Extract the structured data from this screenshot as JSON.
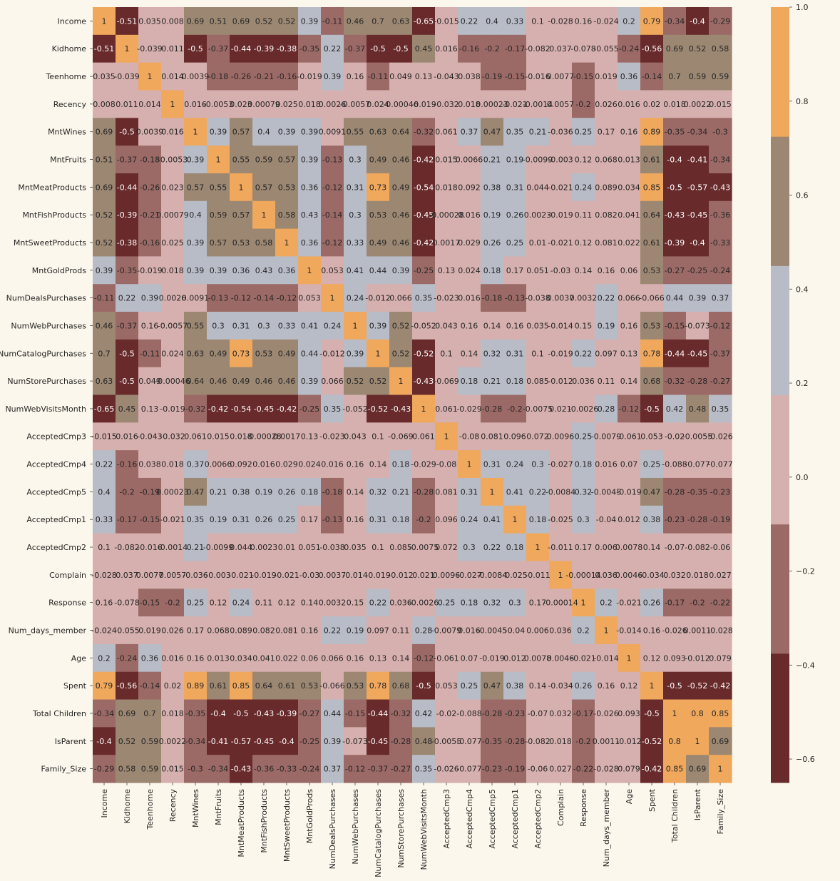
{
  "chart_data": {
    "type": "heatmap",
    "title": "",
    "xlabel": "",
    "ylabel": "",
    "labels": [
      "Income",
      "Kidhome",
      "Teenhome",
      "Recency",
      "MntWines",
      "MntFruits",
      "MntMeatProducts",
      "MntFishProducts",
      "MntSweetProducts",
      "MntGoldProds",
      "NumDealsPurchases",
      "NumWebPurchases",
      "NumCatalogPurchases",
      "NumStorePurchases",
      "NumWebVisitsMonth",
      "AcceptedCmp3",
      "AcceptedCmp4",
      "AcceptedCmp5",
      "AcceptedCmp1",
      "AcceptedCmp2",
      "Complain",
      "Response",
      "Num_days_member",
      "Age",
      "Spent",
      "Total Children",
      "IsParent",
      "Family_Size"
    ],
    "cell_text": [
      [
        "1",
        "-0.51",
        "0.035",
        "0.008",
        "0.69",
        "0.51",
        "0.69",
        "0.52",
        "0.52",
        "0.39",
        "-0.11",
        "0.46",
        "0.7",
        "0.63",
        "-0.65",
        "-0.015",
        "0.22",
        "0.4",
        "0.33",
        "0.1",
        "-0.028",
        "0.16",
        "-0.024",
        "0.2",
        "0.79",
        "-0.34",
        "-0.4",
        "-0.29"
      ],
      [
        "-0.51",
        "1",
        "-0.039",
        "0.011",
        "-0.5",
        "-0.37",
        "-0.44",
        "-0.39",
        "-0.38",
        "-0.35",
        "0.22",
        "-0.37",
        "-0.5",
        "-0.5",
        "0.45",
        "0.016",
        "-0.16",
        "-0.2",
        "-0.17",
        "-0.082",
        "0.037",
        "-0.078",
        "-0.055",
        "-0.24",
        "-0.56",
        "0.69",
        "0.52",
        "0.58"
      ],
      [
        "0.035",
        "-0.039",
        "1",
        "0.014",
        "0.0039",
        "-0.18",
        "-0.26",
        "-0.21",
        "-0.16",
        "-0.019",
        "0.39",
        "0.16",
        "-0.11",
        "0.049",
        "0.13",
        "-0.043",
        "0.038",
        "-0.19",
        "-0.15",
        "-0.016",
        "0.0077",
        "-0.15",
        "0.019",
        "0.36",
        "-0.14",
        "0.7",
        "0.59",
        "0.59"
      ],
      [
        "0.008",
        "0.011",
        "0.014",
        "1",
        "0.016",
        "-0.0053",
        "0.023",
        "0.00079",
        "0.025",
        "0.018",
        "0.0026",
        "-0.0057",
        "0.024",
        "-0.00046",
        "-0.019",
        "-0.032",
        "0.018",
        "0.00023",
        "-0.021",
        "-0.0014",
        "0.0057",
        "-0.2",
        "0.026",
        "0.016",
        "0.02",
        "0.018",
        "0.0022",
        "0.015"
      ],
      [
        "0.69",
        "-0.5",
        "0.0039",
        "0.016",
        "1",
        "0.39",
        "0.57",
        "0.4",
        "0.39",
        "0.39",
        "0.0091",
        "0.55",
        "0.63",
        "0.64",
        "-0.32",
        "0.061",
        "0.37",
        "0.47",
        "0.35",
        "0.21",
        "-0.036",
        "0.25",
        "0.17",
        "0.16",
        "0.89",
        "-0.35",
        "-0.34",
        "-0.3"
      ],
      [
        "0.51",
        "-0.37",
        "-0.18",
        "-0.0053",
        "0.39",
        "1",
        "0.55",
        "0.59",
        "0.57",
        "0.39",
        "-0.13",
        "0.3",
        "0.49",
        "0.46",
        "-0.42",
        "0.015",
        "0.0066",
        "0.21",
        "0.19",
        "-0.0099",
        "-0.003",
        "0.12",
        "0.068",
        "0.013",
        "0.61",
        "-0.4",
        "-0.41",
        "-0.34"
      ],
      [
        "0.69",
        "-0.44",
        "-0.26",
        "0.023",
        "0.57",
        "0.55",
        "1",
        "0.57",
        "0.53",
        "0.36",
        "-0.12",
        "0.31",
        "0.73",
        "0.49",
        "-0.54",
        "0.018",
        "0.092",
        "0.38",
        "0.31",
        "0.044",
        "-0.021",
        "0.24",
        "0.089",
        "0.034",
        "0.85",
        "-0.5",
        "-0.57",
        "-0.43"
      ],
      [
        "0.52",
        "-0.39",
        "-0.21",
        "0.00079",
        "0.4",
        "0.59",
        "0.57",
        "1",
        "0.58",
        "0.43",
        "-0.14",
        "0.3",
        "0.53",
        "0.46",
        "-0.45",
        "-0.00028",
        "0.016",
        "0.19",
        "0.26",
        "0.0023",
        "-0.019",
        "0.11",
        "0.082",
        "0.041",
        "0.64",
        "-0.43",
        "-0.45",
        "-0.36"
      ],
      [
        "0.52",
        "-0.38",
        "-0.16",
        "0.025",
        "0.39",
        "0.57",
        "0.53",
        "0.58",
        "1",
        "0.36",
        "-0.12",
        "0.33",
        "0.49",
        "0.46",
        "-0.42",
        "0.0017",
        "0.029",
        "0.26",
        "0.25",
        "0.01",
        "-0.021",
        "0.12",
        "0.081",
        "0.022",
        "0.61",
        "-0.39",
        "-0.4",
        "-0.33"
      ],
      [
        "0.39",
        "-0.35",
        "-0.019",
        "0.018",
        "0.39",
        "0.39",
        "0.36",
        "0.43",
        "0.36",
        "1",
        "0.053",
        "0.41",
        "0.44",
        "0.39",
        "-0.25",
        "0.13",
        "0.024",
        "0.18",
        "0.17",
        "0.051",
        "-0.03",
        "0.14",
        "0.16",
        "0.06",
        "0.53",
        "-0.27",
        "-0.25",
        "-0.24"
      ],
      [
        "-0.11",
        "0.22",
        "0.39",
        "0.0026",
        "0.0091",
        "-0.13",
        "-0.12",
        "-0.14",
        "-0.12",
        "0.053",
        "1",
        "0.24",
        "-0.012",
        "0.066",
        "0.35",
        "-0.023",
        "0.016",
        "-0.18",
        "-0.13",
        "-0.038",
        "0.0037",
        "0.0032",
        "0.22",
        "0.066",
        "-0.066",
        "0.44",
        "0.39",
        "0.37"
      ],
      [
        "0.46",
        "-0.37",
        "0.16",
        "-0.0057",
        "0.55",
        "0.3",
        "0.31",
        "0.3",
        "0.33",
        "0.41",
        "0.24",
        "1",
        "0.39",
        "0.52",
        "-0.052",
        "0.043",
        "0.16",
        "0.14",
        "0.16",
        "0.035",
        "-0.014",
        "0.15",
        "0.19",
        "0.16",
        "0.53",
        "-0.15",
        "-0.073",
        "-0.12"
      ],
      [
        "0.7",
        "-0.5",
        "-0.11",
        "0.024",
        "0.63",
        "0.49",
        "0.73",
        "0.53",
        "0.49",
        "0.44",
        "-0.012",
        "0.39",
        "1",
        "0.52",
        "-0.52",
        "0.1",
        "0.14",
        "0.32",
        "0.31",
        "0.1",
        "-0.019",
        "0.22",
        "0.097",
        "0.13",
        "0.78",
        "-0.44",
        "-0.45",
        "-0.37"
      ],
      [
        "0.63",
        "-0.5",
        "0.049",
        "-0.00046",
        "0.64",
        "0.46",
        "0.49",
        "0.46",
        "0.46",
        "0.39",
        "0.066",
        "0.52",
        "0.52",
        "1",
        "-0.43",
        "-0.069",
        "0.18",
        "0.21",
        "0.18",
        "0.085",
        "-0.012",
        "0.036",
        "0.11",
        "0.14",
        "0.68",
        "-0.32",
        "-0.28",
        "-0.27"
      ],
      [
        "-0.65",
        "0.45",
        "0.13",
        "-0.019",
        "-0.32",
        "-0.42",
        "-0.54",
        "-0.45",
        "-0.42",
        "-0.25",
        "0.35",
        "-0.052",
        "-0.52",
        "-0.43",
        "1",
        "0.061",
        "-0.029",
        "-0.28",
        "-0.2",
        "-0.0075",
        "0.021",
        "-0.0026",
        "0.28",
        "-0.12",
        "-0.5",
        "0.42",
        "0.48",
        "0.35"
      ],
      [
        "-0.015",
        "0.016",
        "-0.043",
        "-0.032",
        "0.061",
        "0.015",
        "0.018",
        "-0.00028",
        "0.0017",
        "0.13",
        "-0.023",
        "0.043",
        "0.1",
        "-0.069",
        "0.061",
        "1",
        "-0.08",
        "0.081",
        "0.096",
        "0.072",
        "0.0096",
        "0.25",
        "-0.0079",
        "-0.061",
        "0.053",
        "-0.02",
        "-0.0055",
        "-0.026"
      ],
      [
        "0.22",
        "-0.16",
        "0.038",
        "0.018",
        "0.37",
        "0.0066",
        "0.092",
        "0.016",
        "0.029",
        "0.024",
        "0.016",
        "0.16",
        "0.14",
        "0.18",
        "-0.029",
        "-0.08",
        "1",
        "0.31",
        "0.24",
        "0.3",
        "-0.027",
        "0.18",
        "0.016",
        "0.07",
        "0.25",
        "-0.088",
        "-0.077",
        "-0.077"
      ],
      [
        "0.4",
        "-0.2",
        "-0.19",
        "0.00023",
        "0.47",
        "0.21",
        "0.38",
        "0.19",
        "0.26",
        "0.18",
        "-0.18",
        "0.14",
        "0.32",
        "0.21",
        "-0.28",
        "0.081",
        "0.31",
        "1",
        "0.41",
        "0.22",
        "-0.0084",
        "0.32",
        "-0.0045",
        "-0.019",
        "0.47",
        "-0.28",
        "-0.35",
        "-0.23"
      ],
      [
        "0.33",
        "-0.17",
        "-0.15",
        "-0.021",
        "0.35",
        "0.19",
        "0.31",
        "0.26",
        "0.25",
        "0.17",
        "-0.13",
        "0.16",
        "0.31",
        "0.18",
        "-0.2",
        "0.096",
        "0.24",
        "0.41",
        "1",
        "0.18",
        "-0.025",
        "0.3",
        "-0.04",
        "0.012",
        "0.38",
        "-0.23",
        "-0.28",
        "-0.19"
      ],
      [
        "0.1",
        "-0.082",
        "-0.016",
        "-0.0014",
        "0.21",
        "-0.0099",
        "0.044",
        "0.0023",
        "0.01",
        "0.051",
        "-0.038",
        "0.035",
        "0.1",
        "0.085",
        "-0.0075",
        "0.072",
        "0.3",
        "0.22",
        "0.18",
        "1",
        "-0.011",
        "0.17",
        "0.006",
        "0.0078",
        "0.14",
        "-0.07",
        "-0.082",
        "-0.06"
      ],
      [
        "-0.028",
        "0.037",
        "0.0077",
        "0.0057",
        "-0.036",
        "-0.003",
        "-0.021",
        "-0.019",
        "-0.021",
        "-0.03",
        "0.0037",
        "-0.014",
        "-0.019",
        "-0.012",
        "0.021",
        "0.0096",
        "-0.027",
        "-0.0084",
        "-0.025",
        "-0.011",
        "1",
        "-0.00014",
        "0.036",
        "0.0046",
        "-0.034",
        "0.032",
        "0.018",
        "0.027"
      ],
      [
        "0.16",
        "-0.078",
        "-0.15",
        "-0.2",
        "0.25",
        "0.12",
        "0.24",
        "0.11",
        "0.12",
        "0.14",
        "0.0032",
        "0.15",
        "0.22",
        "0.036",
        "-0.0026",
        "0.25",
        "0.18",
        "0.32",
        "0.3",
        "0.17",
        "-0.00014",
        "1",
        "0.2",
        "-0.021",
        "0.26",
        "-0.17",
        "-0.2",
        "-0.22"
      ],
      [
        "-0.024",
        "-0.055",
        "0.019",
        "0.026",
        "0.17",
        "0.068",
        "0.089",
        "0.082",
        "0.081",
        "0.16",
        "0.22",
        "0.19",
        "0.097",
        "0.11",
        "0.28",
        "-0.0079",
        "0.016",
        "-0.0045",
        "-0.04",
        "0.006",
        "0.036",
        "0.2",
        "1",
        "-0.014",
        "0.16",
        "-0.026",
        "0.0011",
        "-0.028"
      ],
      [
        "0.2",
        "-0.24",
        "0.36",
        "0.016",
        "0.16",
        "0.013",
        "0.034",
        "0.041",
        "0.022",
        "0.06",
        "0.066",
        "0.16",
        "0.13",
        "0.14",
        "-0.12",
        "-0.061",
        "0.07",
        "-0.019",
        "0.012",
        "0.0078",
        "0.0046",
        "-0.021",
        "-0.014",
        "1",
        "0.12",
        "0.093",
        "-0.012",
        "0.079"
      ],
      [
        "0.79",
        "-0.56",
        "-0.14",
        "0.02",
        "0.89",
        "0.61",
        "0.85",
        "0.64",
        "0.61",
        "0.53",
        "-0.066",
        "0.53",
        "0.78",
        "0.68",
        "-0.5",
        "0.053",
        "0.25",
        "0.47",
        "0.38",
        "0.14",
        "-0.034",
        "0.26",
        "0.16",
        "0.12",
        "1",
        "-0.5",
        "-0.52",
        "-0.42"
      ],
      [
        "-0.34",
        "0.69",
        "0.7",
        "0.018",
        "-0.35",
        "-0.4",
        "-0.5",
        "-0.43",
        "-0.39",
        "-0.27",
        "0.44",
        "-0.15",
        "-0.44",
        "-0.32",
        "0.42",
        "-0.02",
        "-0.088",
        "-0.28",
        "-0.23",
        "-0.07",
        "0.032",
        "-0.17",
        "-0.026",
        "0.093",
        "-0.5",
        "1",
        "0.8",
        "0.85"
      ],
      [
        "-0.4",
        "0.52",
        "0.59",
        "0.0022",
        "-0.34",
        "-0.41",
        "-0.57",
        "-0.45",
        "-0.4",
        "-0.25",
        "0.39",
        "-0.073",
        "-0.45",
        "-0.28",
        "0.48",
        "-0.0055",
        "-0.077",
        "-0.35",
        "-0.28",
        "-0.082",
        "0.018",
        "-0.2",
        "0.0011",
        "-0.012",
        "-0.52",
        "0.8",
        "1",
        "0.69"
      ],
      [
        "-0.29",
        "0.58",
        "0.59",
        "0.015",
        "-0.3",
        "-0.34",
        "-0.43",
        "-0.36",
        "-0.33",
        "-0.24",
        "0.37",
        "-0.12",
        "-0.37",
        "-0.27",
        "0.35",
        "-0.026",
        "-0.077",
        "-0.23",
        "-0.19",
        "-0.06",
        "0.027",
        "-0.22",
        "-0.028",
        "0.079",
        "-0.42",
        "0.85",
        "0.69",
        "1"
      ]
    ],
    "colorbar": {
      "vmin": -0.65,
      "vmax": 1.0,
      "colors": [
        "#682a2b",
        "#9c6a66",
        "#d6b0ae",
        "#b8bcc7",
        "#9b8772",
        "#f0a85c"
      ],
      "ticks": [
        -0.6,
        -0.4,
        -0.2,
        0.0,
        0.2,
        0.4,
        0.6,
        0.8,
        1.0
      ],
      "tick_labels": [
        "−0.6",
        "−0.4",
        "−0.2",
        "0.0",
        "0.2",
        "0.4",
        "0.6",
        "0.8",
        "1.0"
      ]
    },
    "background_color": "#fcf7ec",
    "annotation_text_light": "#ffffff",
    "annotation_text_dark": "#262626"
  }
}
